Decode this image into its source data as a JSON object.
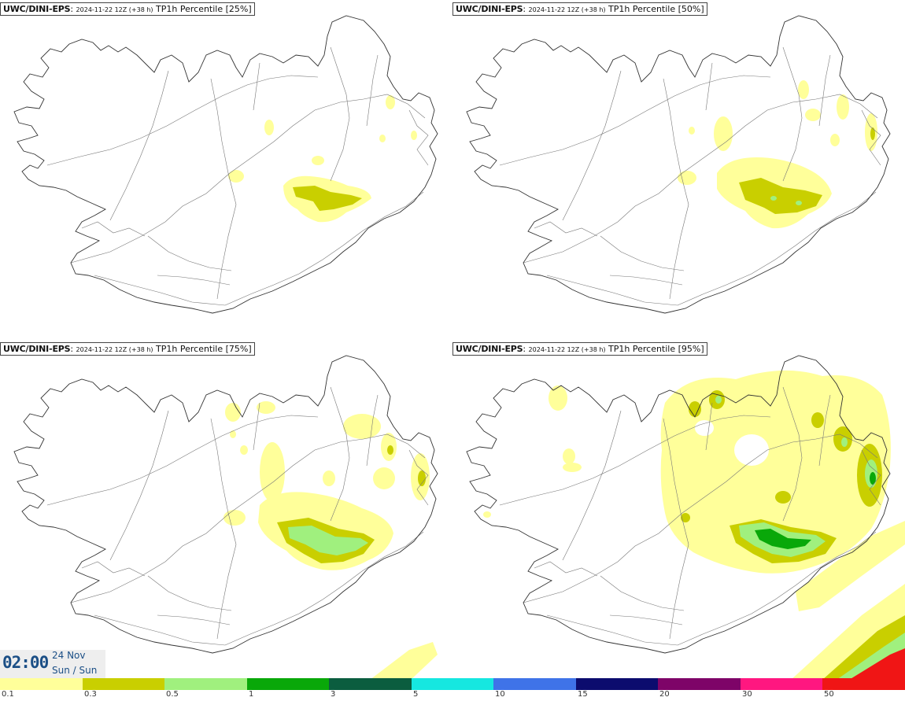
{
  "panels": [
    {
      "model": "UWC/DINI-EPS",
      "run": "2024-11-22 12Z (+38 h)",
      "field": "TP1h Percentile [25%]"
    },
    {
      "model": "UWC/DINI-EPS",
      "run": "2024-11-22 12Z (+38 h)",
      "field": "TP1h Percentile [50%]"
    },
    {
      "model": "UWC/DINI-EPS",
      "run": "2024-11-22 12Z (+38 h)",
      "field": "TP1h Percentile [75%]"
    },
    {
      "model": "UWC/DINI-EPS",
      "run": "2024-11-22 12Z (+38 h)",
      "field": "TP1h Percentile [95%]"
    }
  ],
  "valid_time": {
    "time": "02:00",
    "date": "24 Nov",
    "weekday": "Sun / Sun"
  },
  "legend": {
    "labels": [
      "0.1",
      "0.3",
      "0.5",
      "1",
      "3",
      "5",
      "10",
      "15",
      "20",
      "30",
      "50"
    ],
    "colors": [
      "#ffff9a",
      "#c9cf00",
      "#a0f07e",
      "#09a809",
      "#0b5d3f",
      "#16e7e0",
      "#3f73e8",
      "#0c0c6e",
      "#7e0468",
      "#ff1780",
      "#f01515"
    ]
  }
}
